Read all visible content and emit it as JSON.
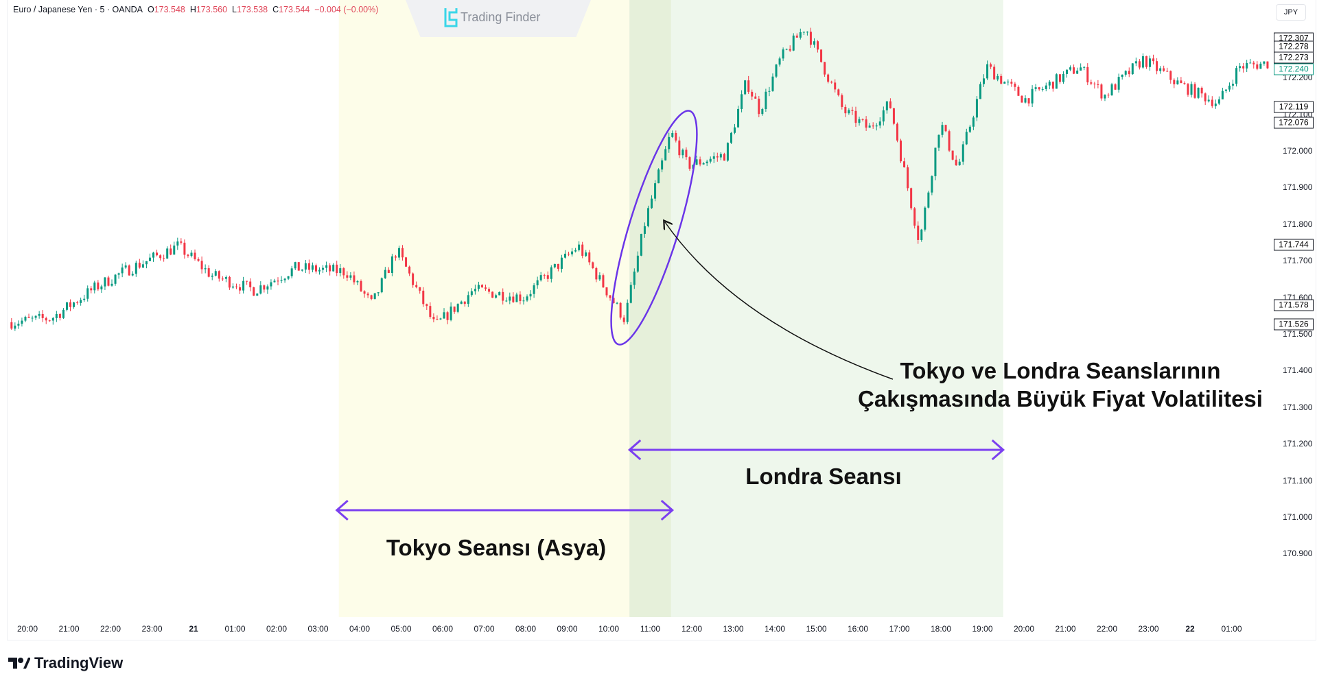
{
  "header": {
    "symbol": "Euro / Japanese Yen · 5 · OANDA",
    "open_label": "O",
    "open": "173.548",
    "high_label": "H",
    "high": "173.560",
    "low_label": "L",
    "low": "173.538",
    "close_label": "C",
    "close": "173.544",
    "change": "−0.004 (−0.00%)"
  },
  "watermark": {
    "text": "Trading Finder"
  },
  "currency_button": "JPY",
  "price_axis": {
    "ticks": [
      "172.200",
      "172.100",
      "172.000",
      "171.900",
      "171.800",
      "171.700",
      "171.600",
      "171.500",
      "171.400",
      "171.300",
      "171.200",
      "171.100",
      "171.000",
      "170.900"
    ],
    "marked_levels": [
      "172.307",
      "172.278",
      "172.273",
      "172.240",
      "172.119",
      "172.076",
      "171.744",
      "171.578",
      "171.526"
    ],
    "current_price": "172.240"
  },
  "time_axis": {
    "ticks": [
      "20:00",
      "21:00",
      "22:00",
      "23:00",
      "21",
      "01:00",
      "02:00",
      "03:00",
      "04:00",
      "05:00",
      "06:00",
      "07:00",
      "08:00",
      "09:00",
      "10:00",
      "11:00",
      "12:00",
      "13:00",
      "14:00",
      "15:00",
      "16:00",
      "17:00",
      "18:00",
      "19:00",
      "20:00",
      "21:00",
      "22:00",
      "23:00",
      "22",
      "01:00"
    ]
  },
  "sessions": {
    "tokyo": {
      "label": "Tokyo Seansı (Asya)",
      "start": "21 03:30",
      "end": "21 11:30",
      "color": "#fdfde9"
    },
    "london": {
      "label": "Londra Seansı",
      "start": "21 10:30",
      "end": "21 19:30",
      "color": "#eef7ec"
    }
  },
  "annotation": {
    "line1": "Tokyo ve Londra Seanslarının",
    "line2": "Çakışmasında Büyük Fiyat Volatilitesi",
    "color": "#6a35e8"
  },
  "colors": {
    "up": "#089981",
    "down": "#f23645",
    "arrow": "#7b3ff0"
  },
  "price_path": [
    [
      "20 19:37",
      171.532
    ],
    [
      "20 20:35",
      171.543
    ],
    [
      "20 21:36",
      171.624
    ],
    [
      "20 22:19",
      171.67
    ],
    [
      "20 23:38",
      171.74
    ],
    [
      "21 00:26",
      171.66
    ],
    [
      "21 01:28",
      171.62
    ],
    [
      "21 02:28",
      171.68
    ],
    [
      "21 03:41",
      171.67
    ],
    [
      "21 04:18",
      171.58
    ],
    [
      "21 04:54",
      171.73
    ],
    [
      "21 05:49",
      171.52
    ],
    [
      "21 06:44",
      171.62
    ],
    [
      "21 07:57",
      171.6
    ],
    [
      "21 09:16",
      171.74
    ],
    [
      "21 10:23",
      171.54
    ],
    [
      "21 10:53",
      171.81
    ],
    [
      "21 11:30",
      172.05
    ],
    [
      "21 11:54",
      171.96
    ],
    [
      "21 12:49",
      171.99
    ],
    [
      "21 13:19",
      172.19
    ],
    [
      "21 13:38",
      172.11
    ],
    [
      "21 14:08",
      172.25
    ],
    [
      "21 14:44",
      172.34
    ],
    [
      "21 15:39",
      172.11
    ],
    [
      "21 16:16",
      172.06
    ],
    [
      "21 16:46",
      172.13
    ],
    [
      "21 17:29",
      171.75
    ],
    [
      "21 17:59",
      172.08
    ],
    [
      "21 18:24",
      171.95
    ],
    [
      "21 19:06",
      172.23
    ],
    [
      "21 20:01",
      172.14
    ],
    [
      "21 21:20",
      172.23
    ],
    [
      "21 21:56",
      172.15
    ],
    [
      "21 22:52",
      172.25
    ],
    [
      "21 23:46",
      172.18
    ],
    [
      "22 00:41",
      172.13
    ],
    [
      "22 01:11",
      172.23
    ],
    [
      "22 01:54",
      172.24
    ]
  ],
  "footer": {
    "brand": "TradingView"
  }
}
